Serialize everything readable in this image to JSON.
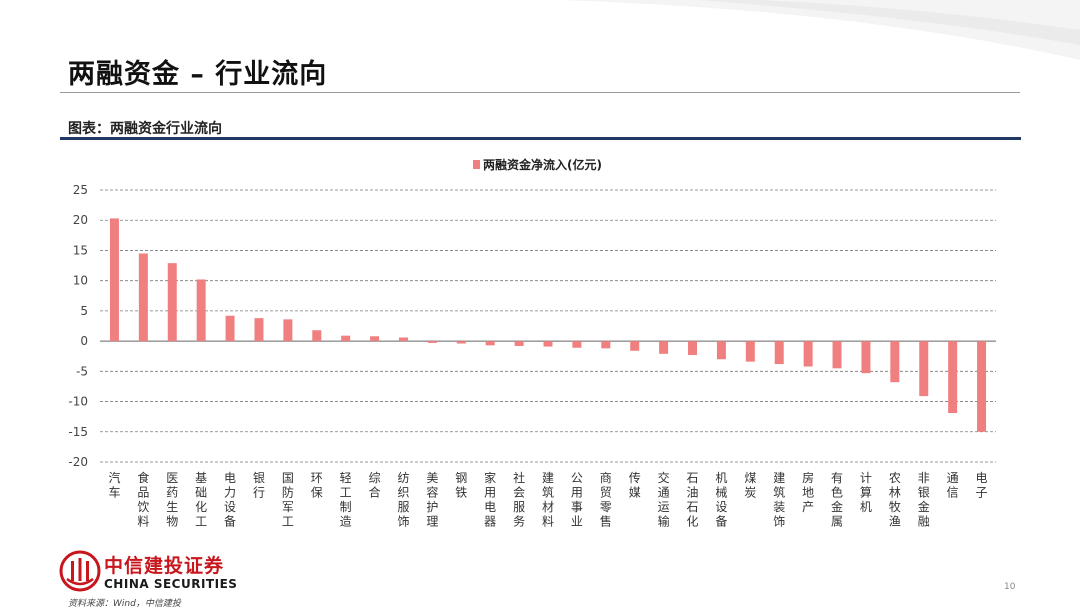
{
  "slide": {
    "title": "两融资金 – 行业流向",
    "caption": "图表：两融资金行业流向",
    "source": "资料来源：Wind，中信建投",
    "page_number": "10"
  },
  "brand": {
    "name_cn": "中信建投证券",
    "name_en": "CHINA SECURITIES",
    "color": "#c8161d"
  },
  "chart_data": {
    "type": "bar",
    "title": "",
    "xlabel": "",
    "ylabel": "",
    "ylim": [
      -20,
      25
    ],
    "yticks": [
      25,
      20,
      15,
      10,
      5,
      0,
      -5,
      -10,
      -15,
      -20
    ],
    "grid": true,
    "legend_position": "top-center",
    "bar_color": "#f08080",
    "categories": [
      "汽车",
      "食品饮料",
      "医药生物",
      "基础化工",
      "电力设备",
      "银行",
      "国防军工",
      "环保",
      "轻工制造",
      "综合",
      "纺织服饰",
      "美容护理",
      "钢铁",
      "家用电器",
      "社会服务",
      "建筑材料",
      "公用事业",
      "商贸零售",
      "传媒",
      "交通运输",
      "石油石化",
      "机械设备",
      "煤炭",
      "建筑装饰",
      "房地产",
      "有色金属",
      "计算机",
      "农林牧渔",
      "非银金融",
      "通信",
      "电子"
    ],
    "series": [
      {
        "name": "两融资金净流入(亿元)",
        "values": [
          20.3,
          14.5,
          12.9,
          10.2,
          4.2,
          3.8,
          3.6,
          1.8,
          0.9,
          0.8,
          0.6,
          -0.3,
          -0.4,
          -0.7,
          -0.8,
          -0.9,
          -1.1,
          -1.2,
          -1.6,
          -2.1,
          -2.3,
          -3.0,
          -3.4,
          -3.8,
          -4.2,
          -4.5,
          -5.3,
          -6.8,
          -9.1,
          -11.9,
          -15.0
        ]
      }
    ]
  }
}
